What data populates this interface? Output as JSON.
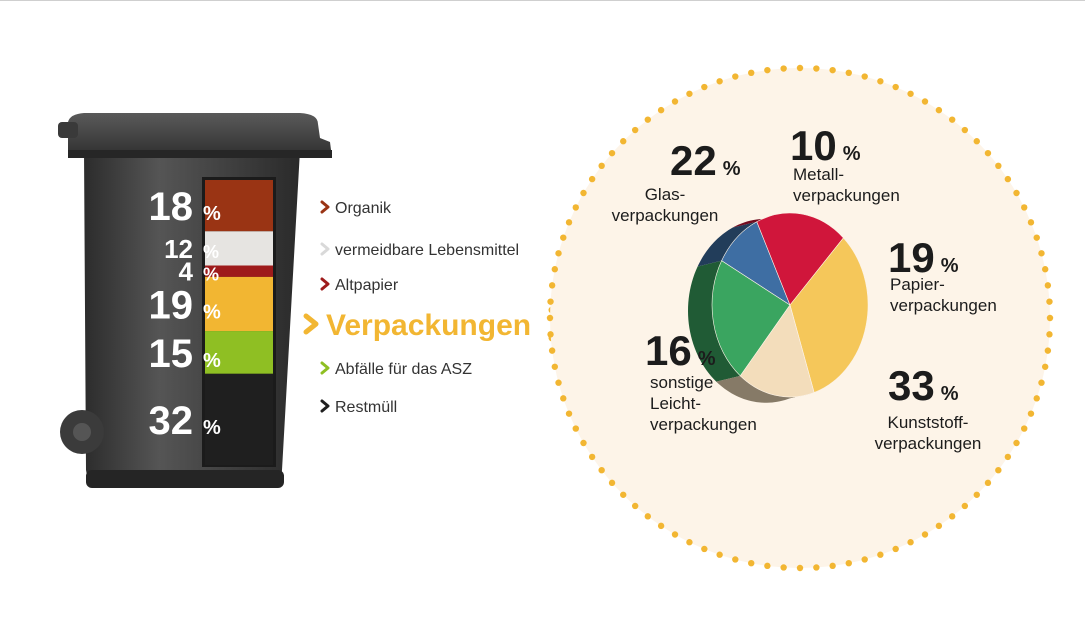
{
  "colors": {
    "organik": "#9a3414",
    "lebensmittel": "#e6e4e1",
    "altpapier": "#9e1b1b",
    "verpackungen": "#f2b632",
    "asz": "#8fbf23",
    "restmuell": "#1f1f1f",
    "glas": "#3aa560",
    "metall": "#3e6ea3",
    "papier": "#d0163b",
    "kunststoff": "#f5c75a",
    "leicht": "#f3ddbb",
    "circle_fill": "#fdf4e8",
    "dots": "#f2b632"
  },
  "chart_data": [
    {
      "type": "bar",
      "categories": [
        "Organik",
        "vermeidbare Lebensmittel",
        "Altpapier",
        "Verpackungen",
        "Abfälle für das ASZ",
        "Restmüll"
      ],
      "values": [
        18,
        12,
        4,
        19,
        15,
        32
      ],
      "value_labels": [
        "18",
        "12",
        "4",
        "19",
        "15",
        "32"
      ],
      "unit": "%",
      "arrow_label": "Verpackungen"
    },
    {
      "type": "pie",
      "slices": [
        {
          "key": "glas",
          "value": 22,
          "label_lines": [
            "Glas-",
            "verpackungen"
          ]
        },
        {
          "key": "metall",
          "value": 10,
          "label_lines": [
            "Metall-",
            "verpackungen"
          ]
        },
        {
          "key": "papier",
          "value": 19,
          "label_lines": [
            "Papier-",
            "verpackungen"
          ]
        },
        {
          "key": "kunststoff",
          "value": 33,
          "label_lines": [
            "Kunststoff-",
            "verpackungen"
          ]
        },
        {
          "key": "leicht",
          "value": 16,
          "label_lines": [
            "sonstige",
            "Leicht-",
            "verpackungen"
          ]
        }
      ],
      "unit": "%"
    }
  ]
}
